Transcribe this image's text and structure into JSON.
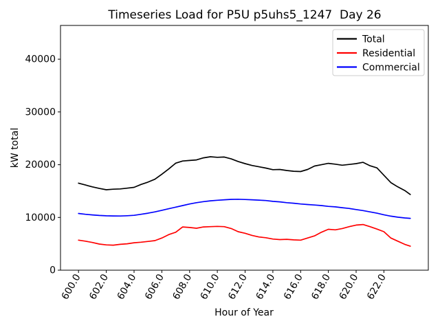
{
  "figure": {
    "title": "Timeseries Load for P5U p5uhs5_1247  Day 26",
    "xlabel": "Hour of Year",
    "ylabel": "kW total"
  },
  "legend": {
    "position": "upper right",
    "items": [
      {
        "label": "Total",
        "color": "#000000"
      },
      {
        "label": "Residential",
        "color": "#ff0000"
      },
      {
        "label": "Commercial",
        "color": "#0000ff"
      }
    ]
  },
  "chart_data": {
    "type": "line",
    "title": "Timeseries Load for P5U p5uhs5_1247  Day 26",
    "xlabel": "Hour of Year",
    "ylabel": "kW total",
    "grid": false,
    "legend_position": "upper right",
    "xlim": [
      598.7,
      625.2
    ],
    "ylim": [
      0,
      46400
    ],
    "xticks": [
      600,
      602,
      604,
      606,
      608,
      610,
      612,
      614,
      616,
      618,
      620,
      622
    ],
    "xtick_labels": [
      "600.0",
      "602.0",
      "604.0",
      "606.0",
      "608.0",
      "610.0",
      "612.0",
      "614.0",
      "616.0",
      "618.0",
      "620.0",
      "622.0"
    ],
    "xtick_rotation": 60,
    "yticks": [
      0,
      10000,
      20000,
      30000,
      40000
    ],
    "ytick_labels": [
      "0",
      "10000",
      "20000",
      "30000",
      "40000"
    ],
    "x": [
      600.0,
      600.5,
      601.0,
      601.5,
      602.0,
      602.5,
      603.0,
      603.5,
      604.0,
      604.5,
      605.0,
      605.5,
      606.0,
      606.5,
      607.0,
      607.5,
      608.0,
      608.5,
      609.0,
      609.5,
      610.0,
      610.5,
      611.0,
      611.5,
      612.0,
      612.5,
      613.0,
      613.5,
      614.0,
      614.5,
      615.0,
      615.5,
      616.0,
      616.5,
      617.0,
      617.5,
      618.0,
      618.5,
      619.0,
      619.5,
      620.0,
      620.5,
      621.0,
      621.5,
      622.0,
      622.5,
      623.0,
      623.5,
      623.9
    ],
    "series": [
      {
        "name": "Total",
        "color": "#000000",
        "values": [
          16500,
          16150,
          15800,
          15500,
          15250,
          15350,
          15400,
          15550,
          15700,
          16250,
          16700,
          17250,
          18200,
          19200,
          20300,
          20700,
          20800,
          20900,
          21300,
          21500,
          21400,
          21450,
          21100,
          20600,
          20200,
          19850,
          19600,
          19350,
          19050,
          19100,
          18900,
          18750,
          18700,
          19100,
          19750,
          20000,
          20250,
          20100,
          19900,
          20050,
          20200,
          20450,
          19800,
          19400,
          18000,
          16600,
          15800,
          15100,
          14350
        ]
      },
      {
        "name": "Residential",
        "color": "#ff0000",
        "values": [
          5700,
          5500,
          5250,
          4950,
          4800,
          4750,
          4900,
          5000,
          5200,
          5300,
          5450,
          5600,
          6100,
          6750,
          7200,
          8200,
          8100,
          7950,
          8200,
          8250,
          8300,
          8250,
          7900,
          7300,
          7000,
          6600,
          6300,
          6150,
          5900,
          5800,
          5850,
          5750,
          5700,
          6100,
          6500,
          7200,
          7750,
          7650,
          7900,
          8250,
          8550,
          8650,
          8250,
          7800,
          7300,
          6100,
          5500,
          4900,
          4550
        ]
      },
      {
        "name": "Commercial",
        "color": "#0000ff",
        "values": [
          10750,
          10600,
          10480,
          10380,
          10310,
          10280,
          10270,
          10320,
          10400,
          10600,
          10800,
          11050,
          11350,
          11650,
          11950,
          12250,
          12550,
          12800,
          13000,
          13150,
          13250,
          13350,
          13420,
          13450,
          13400,
          13350,
          13280,
          13200,
          13050,
          12950,
          12800,
          12700,
          12550,
          12450,
          12350,
          12250,
          12100,
          12000,
          11850,
          11700,
          11500,
          11300,
          11050,
          10800,
          10500,
          10250,
          10050,
          9900,
          9830
        ]
      }
    ]
  }
}
